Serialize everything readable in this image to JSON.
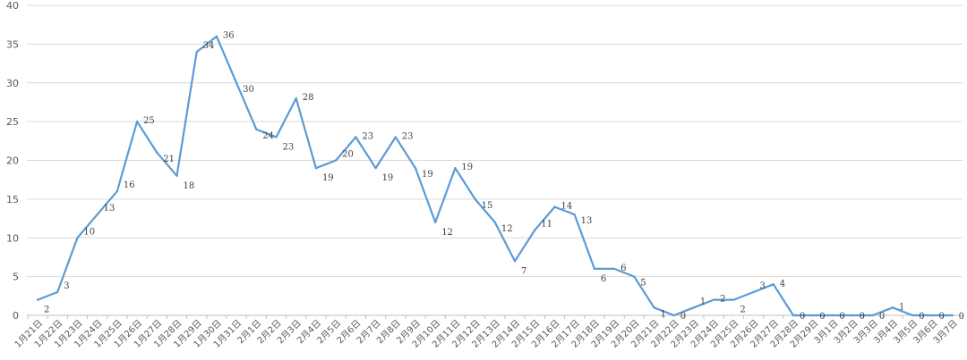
{
  "chart_data": {
    "type": "line",
    "categories": [
      "1月21日",
      "1月22日",
      "1月23日",
      "1月24日",
      "1月25日",
      "1月26日",
      "1月27日",
      "1月28日",
      "1月29日",
      "1月30日",
      "1月31日",
      "2月1日",
      "2月2日",
      "2月3日",
      "2月4日",
      "2月5日",
      "2月6日",
      "2月7日",
      "2月8日",
      "2月9日",
      "2月10日",
      "2月11日",
      "2月12日",
      "2月13日",
      "2月14日",
      "2月15日",
      "2月16日",
      "2月17日",
      "2月18日",
      "2月19日",
      "2月20日",
      "2月21日",
      "2月22日",
      "2月23日",
      "2月24日",
      "2月25日",
      "2月26日",
      "2月27日",
      "2月28日",
      "2月29日",
      "3月1日",
      "3月2日",
      "3月3日",
      "3月4日",
      "3月5日",
      "3月6日",
      "3月7日"
    ],
    "series": [
      {
        "values": [
          2,
          3,
          10,
          13,
          16,
          25,
          21,
          18,
          34,
          36,
          30,
          24,
          23,
          28,
          19,
          20,
          23,
          19,
          23,
          19,
          12,
          19,
          15,
          12,
          7,
          11,
          14,
          13,
          6,
          6,
          5,
          1,
          0,
          1,
          2,
          2,
          3,
          4,
          0,
          0,
          0,
          0,
          0,
          1,
          0,
          0,
          0
        ]
      }
    ],
    "ylim": [
      0,
      40
    ],
    "yticks": [
      0,
      5,
      10,
      15,
      20,
      25,
      30,
      35,
      40
    ],
    "grid": true,
    "line_color": "#5b9bd5",
    "grid_color": "#d9d9d9"
  }
}
